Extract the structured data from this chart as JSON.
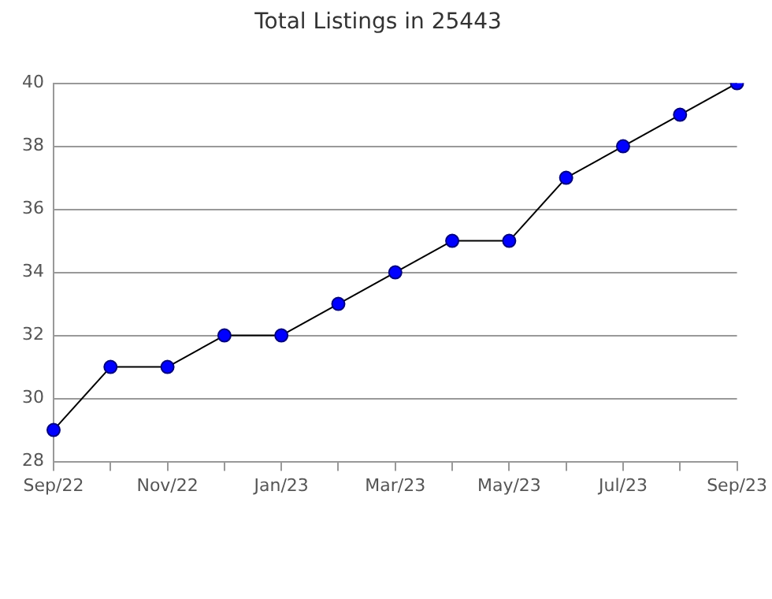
{
  "chart_data": {
    "type": "line",
    "title": "Total Listings in 25443",
    "categories": [
      "Sep/22",
      null,
      "Nov/22",
      null,
      "Jan/23",
      null,
      "Mar/23",
      null,
      "May/23",
      null,
      "Jul/23",
      null,
      "Sep/23"
    ],
    "series": [
      {
        "color": "#0000ff",
        "values": [
          29,
          31,
          31,
          32,
          32,
          33,
          34,
          35,
          35,
          37,
          38,
          39,
          40
        ]
      }
    ],
    "ylim": [
      28,
      40
    ],
    "yticks": [
      28,
      30,
      32,
      34,
      36,
      38,
      40
    ],
    "grid": "y",
    "legend": false,
    "marker": "circle",
    "line_style": "solid"
  }
}
